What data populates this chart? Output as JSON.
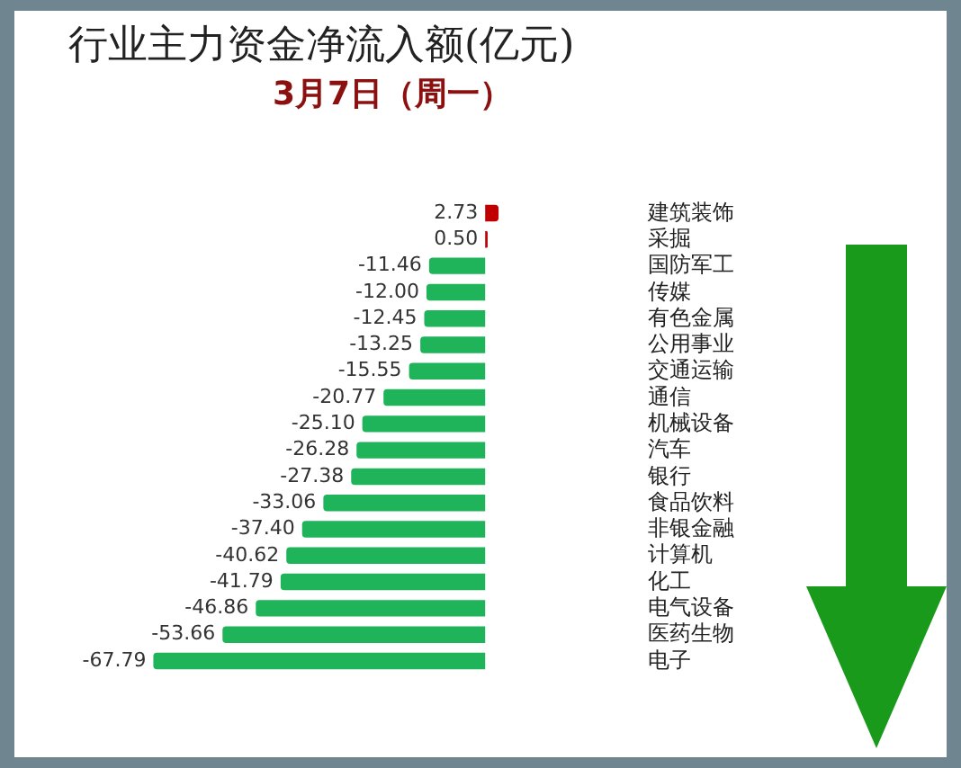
{
  "chart_data": {
    "type": "bar",
    "orientation": "horizontal",
    "title": "行业主力资金净流入额(亿元)",
    "subtitle": "3月7日（周一）",
    "categories": [
      "建筑装饰",
      "采掘",
      "国防军工",
      "传媒",
      "有色金属",
      "公用事业",
      "交通运输",
      "通信",
      "机械设备",
      "汽车",
      "银行",
      "食品饮料",
      "非银金融",
      "计算机",
      "化工",
      "电气设备",
      "医药生物",
      "电子"
    ],
    "values": [
      2.73,
      0.5,
      -11.46,
      -12.0,
      -12.45,
      -13.25,
      -15.55,
      -20.77,
      -25.1,
      -26.28,
      -27.38,
      -33.06,
      -37.4,
      -40.62,
      -41.79,
      -46.86,
      -53.66,
      -67.79
    ],
    "colors": [
      "#c00000",
      "#c00000",
      "#1fb45a",
      "#1fb45a",
      "#1fb45a",
      "#1fb45a",
      "#1fb45a",
      "#1fb45a",
      "#1fb45a",
      "#1fb45a",
      "#1fb45a",
      "#1fb45a",
      "#1fb45a",
      "#1fb45a",
      "#1fb45a",
      "#1fb45a",
      "#1fb45a",
      "#1fb45a"
    ],
    "value_labels": [
      "2.73",
      "0.50",
      "-11.46",
      "-12.00",
      "-12.45",
      "-13.25",
      "-15.55",
      "-20.77",
      "-25.10",
      "-26.28",
      "-27.38",
      "-33.06",
      "-37.40",
      "-40.62",
      "-41.79",
      "-46.86",
      "-53.66",
      "-67.79"
    ],
    "legend": false
  }
}
